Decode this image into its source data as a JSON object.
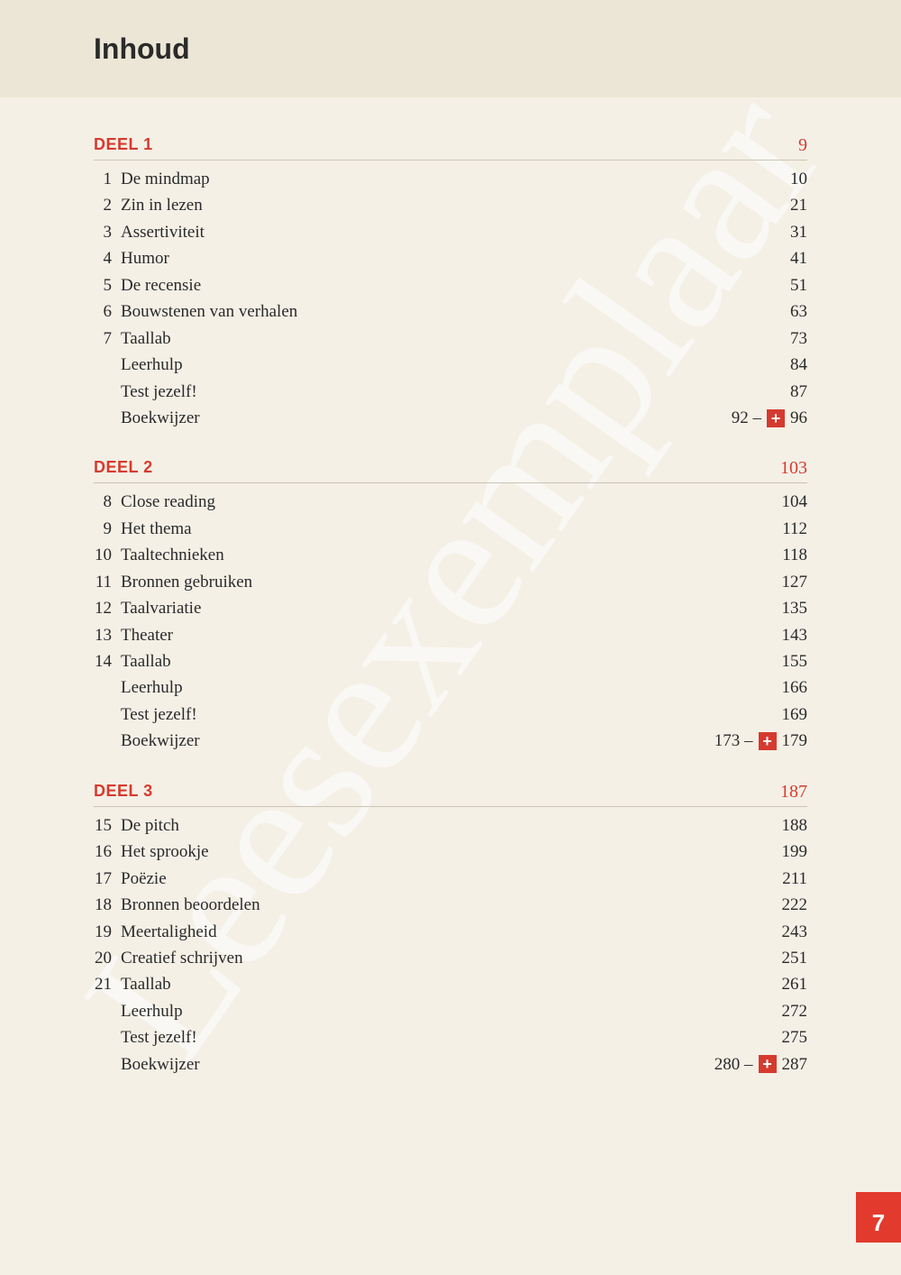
{
  "watermark_text": "Leesexemplaar",
  "page_title": "Inhoud",
  "page_number": "7",
  "colors": {
    "accent": "#d63a2e",
    "tab_bg": "#e23b2e",
    "header_band": "#ece6d6",
    "page_bg": "#f4f0e6",
    "text": "#2a2a2a",
    "rule": "#c9c3b4"
  },
  "sections": [
    {
      "title": "DEEL 1",
      "page": "9",
      "items": [
        {
          "num": "1",
          "label": "De mindmap",
          "page": "10"
        },
        {
          "num": "2",
          "label": "Zin in lezen",
          "page": "21"
        },
        {
          "num": "3",
          "label": "Assertiviteit",
          "page": "31"
        },
        {
          "num": "4",
          "label": "Humor",
          "page": "41"
        },
        {
          "num": "5",
          "label": "De recensie",
          "page": "51"
        },
        {
          "num": "6",
          "label": "Bouwstenen van verhalen",
          "page": "63"
        },
        {
          "num": "7",
          "label": "Taallab",
          "page": "73"
        },
        {
          "num": "",
          "label": "Leerhulp",
          "page": "84"
        },
        {
          "num": "",
          "label": "Test jezelf!",
          "page": "87"
        },
        {
          "num": "",
          "label": "Boekwijzer",
          "page_prefix": "92 – ",
          "has_plus": true,
          "page_suffix": " 96"
        }
      ]
    },
    {
      "title": "DEEL 2",
      "page": "103",
      "items": [
        {
          "num": "8",
          "label": "Close reading",
          "page": "104"
        },
        {
          "num": "9",
          "label": "Het thema",
          "page": "112"
        },
        {
          "num": "10",
          "label": "Taaltechnieken",
          "page": "118"
        },
        {
          "num": "11",
          "label": "Bronnen gebruiken",
          "page": "127"
        },
        {
          "num": "12",
          "label": "Taalvariatie",
          "page": "135"
        },
        {
          "num": "13",
          "label": "Theater",
          "page": "143"
        },
        {
          "num": "14",
          "label": "Taallab",
          "page": "155"
        },
        {
          "num": "",
          "label": "Leerhulp",
          "page": "166"
        },
        {
          "num": "",
          "label": "Test jezelf!",
          "page": "169"
        },
        {
          "num": "",
          "label": "Boekwijzer",
          "page_prefix": "173 – ",
          "has_plus": true,
          "page_suffix": " 179"
        }
      ]
    },
    {
      "title": "DEEL 3",
      "page": "187",
      "items": [
        {
          "num": "15",
          "label": "De pitch",
          "page": "188"
        },
        {
          "num": "16",
          "label": "Het sprookje",
          "page": "199"
        },
        {
          "num": "17",
          "label": "Poëzie",
          "page": "211"
        },
        {
          "num": "18",
          "label": "Bronnen beoordelen",
          "page": "222"
        },
        {
          "num": "19",
          "label": "Meertaligheid",
          "page": "243"
        },
        {
          "num": "20",
          "label": "Creatief schrijven",
          "page": "251"
        },
        {
          "num": "21",
          "label": "Taallab",
          "page": "261"
        },
        {
          "num": "",
          "label": "Leerhulp",
          "page": "272"
        },
        {
          "num": "",
          "label": "Test jezelf!",
          "page": "275"
        },
        {
          "num": "",
          "label": "Boekwijzer",
          "page_prefix": "280 – ",
          "has_plus": true,
          "page_suffix": " 287"
        }
      ]
    }
  ]
}
